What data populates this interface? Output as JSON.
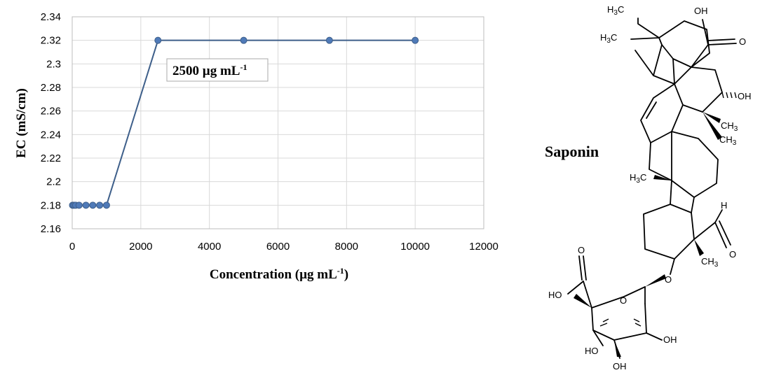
{
  "chart_data": {
    "type": "line",
    "xlabel_main": "Concentration (µg mL",
    "xlabel_sup": "-1",
    "xlabel_close": ")",
    "ylabel": "EC (mS/cm)",
    "xlim": [
      0,
      12000
    ],
    "ylim": [
      2.16,
      2.34
    ],
    "xticks": [
      0,
      2000,
      4000,
      6000,
      8000,
      10000,
      12000
    ],
    "yticks": [
      2.16,
      2.18,
      2.2,
      2.22,
      2.24,
      2.26,
      2.28,
      2.3,
      2.32,
      2.34
    ],
    "ytick_labels": [
      "2.16",
      "2.18",
      "2.2",
      "2.22",
      "2.24",
      "2.26",
      "2.28",
      "2.3",
      "2.32",
      "2.34"
    ],
    "grid": true,
    "series_color": "#3e5f8a",
    "marker_color": "#4f7ab8",
    "x": [
      10,
      50,
      100,
      200,
      400,
      600,
      800,
      1000,
      2500,
      5000,
      7500,
      10000
    ],
    "y": [
      2.18,
      2.18,
      2.18,
      2.18,
      2.18,
      2.18,
      2.18,
      2.18,
      2.32,
      2.32,
      2.32,
      2.32
    ],
    "annotation": {
      "text": "2500 µg mL",
      "sup": "-1"
    }
  },
  "structure": {
    "name": "Saponin",
    "labels": {
      "h3c": "H",
      "three": "3",
      "c": "C",
      "ch": "CH",
      "oh": "OH",
      "ho": "HO",
      "o": "O",
      "h": "H"
    }
  }
}
